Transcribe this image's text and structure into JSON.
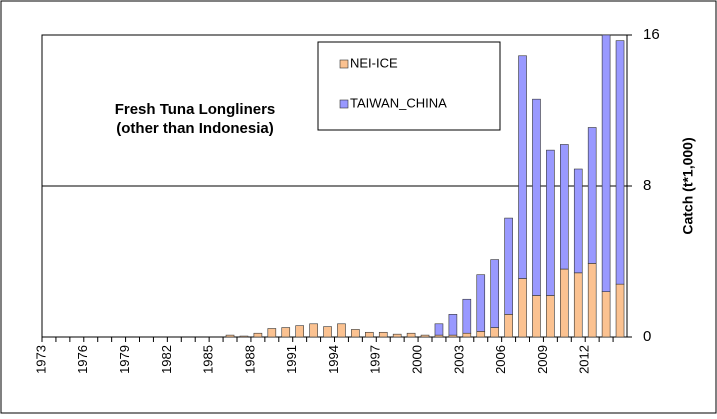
{
  "chart_data": {
    "type": "stacked-bar",
    "annotation": [
      "Fresh Tuna Longliners",
      "(other than Indonesia)"
    ],
    "y2label": "Catch (t*1,000)",
    "categories": [
      "1973",
      null,
      null,
      "1976",
      null,
      null,
      "1979",
      null,
      null,
      "1982",
      null,
      null,
      "1985",
      null,
      null,
      "1988",
      null,
      null,
      "1991",
      null,
      null,
      "1994",
      null,
      null,
      "1997",
      null,
      null,
      "2000",
      null,
      null,
      "2003",
      null,
      null,
      "2006",
      null,
      null,
      "2009",
      null,
      null,
      "2012",
      null,
      null
    ],
    "series": [
      {
        "name": "NEI-ICE",
        "color": "#fbc291",
        "values": [
          0,
          0,
          0,
          0,
          0,
          0,
          0,
          0,
          0,
          0,
          0,
          0,
          0,
          0.1,
          0.05,
          0.2,
          0.45,
          0.5,
          0.6,
          0.7,
          0.55,
          0.7,
          0.4,
          0.25,
          0.25,
          0.15,
          0.2,
          0.1,
          0.1,
          0.1,
          0.2,
          0.3,
          0.5,
          1.2,
          3.1,
          2.2,
          2.2,
          3.6,
          3.4,
          3.9,
          2.4,
          2.8
        ]
      },
      {
        "name": "TAIWAN_CHINA",
        "color": "#9999ff",
        "values": [
          0,
          0,
          0,
          0,
          0,
          0,
          0,
          0,
          0,
          0,
          0,
          0,
          0,
          0,
          0,
          0,
          0,
          0,
          0,
          0,
          0,
          0,
          0,
          0,
          0,
          0,
          0,
          0,
          0.6,
          1.1,
          1.8,
          3.0,
          3.6,
          5.1,
          11.8,
          10.4,
          7.7,
          6.6,
          5.5,
          7.2,
          13.6,
          12.9
        ]
      }
    ],
    "y2lim": [
      0,
      16
    ],
    "y2ticks": [
      0,
      8,
      16
    ],
    "grid": true,
    "legend": "top"
  }
}
